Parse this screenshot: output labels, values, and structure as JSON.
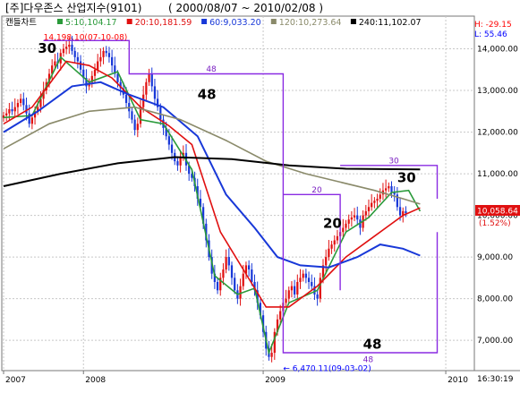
{
  "header": {
    "title": "[주]다우존스 산업지수(9101)",
    "period": "( 2000/08/07 ~ 2010/02/08 )",
    "chart_label": "캔들차트"
  },
  "colors": {
    "ma5": "#2a9a3a",
    "ma20": "#e01010",
    "ma60": "#1838d8",
    "ma120": "#8a8a6a",
    "ma240": "#000000",
    "candle_up": "#e01010",
    "candle_down": "#1838d8",
    "annotation": "#8a2be2",
    "high": "#ff0000",
    "low": "#0000ff",
    "price_box": "#e01010"
  },
  "legend": [
    {
      "label": "5:10,104.17",
      "color": "#2a9a3a"
    },
    {
      "label": "20:10,181.59",
      "color": "#e01010"
    },
    {
      "label": "60:9,033.20",
      "color": "#1838d8"
    },
    {
      "label": "120:10,273.64",
      "color": "#8a8a6a"
    },
    {
      "label": "240:11,102.07",
      "color": "#000000"
    }
  ],
  "minmax": {
    "high": "H: -29.15",
    "low": "L: 55.46"
  },
  "price_box": {
    "value": "10,058.64",
    "change": "(1.52%)"
  },
  "time_label": "16:30:19",
  "chart_data": {
    "type": "candlestick",
    "ylim": [
      6400,
      14700
    ],
    "yticks": [
      {
        "value": 7000,
        "label": "7,000.00"
      },
      {
        "value": 8000,
        "label": "8,000.00"
      },
      {
        "value": 9000,
        "label": "9,000.00"
      },
      {
        "value": 10000,
        "label": "10,000.00"
      },
      {
        "value": 11000,
        "label": "11,000.00"
      },
      {
        "value": 12000,
        "label": "12,000.00"
      },
      {
        "value": 13000,
        "label": "13,000.00"
      },
      {
        "value": 14000,
        "label": "14,000.00"
      }
    ],
    "xlim": [
      0,
      160
    ],
    "xticks": [
      {
        "index": 0,
        "label": "2007"
      },
      {
        "index": 28,
        "label": "2008"
      },
      {
        "index": 91,
        "label": "2009"
      },
      {
        "index": 155,
        "label": "2010"
      }
    ],
    "candles": {
      "up_color_key": "candle_up",
      "down_color_key": "candle_down",
      "note": "Weekly candles; closes below approximate the screenshot",
      "closes": [
        12400,
        12450,
        12550,
        12500,
        12600,
        12700,
        12800,
        12650,
        12450,
        12200,
        12350,
        12500,
        12600,
        12800,
        13000,
        13200,
        13400,
        13600,
        13700,
        13650,
        13900,
        14000,
        14050,
        14100,
        13950,
        13800,
        13700,
        13500,
        13300,
        13100,
        13200,
        13350,
        13500,
        13700,
        13800,
        13950,
        13900,
        13800,
        13600,
        13400,
        13200,
        13050,
        12900,
        12700,
        12500,
        12300,
        12050,
        12200,
        12600,
        12900,
        13200,
        13400,
        13100,
        12800,
        12600,
        12300,
        12100,
        11900,
        11700,
        11500,
        11300,
        11200,
        11400,
        11500,
        11200,
        11000,
        10900,
        10700,
        10400,
        10200,
        9800,
        9400,
        9000,
        8600,
        8400,
        8200,
        8500,
        8700,
        9000,
        8800,
        8500,
        8200,
        8000,
        8300,
        8600,
        8800,
        8700,
        8400,
        8200,
        7900,
        7600,
        7200,
        6800,
        6600,
        6700,
        7200,
        7500,
        7700,
        7900,
        8000,
        8200,
        8300,
        8100,
        8400,
        8500,
        8600,
        8500,
        8400,
        8300,
        8100,
        8000,
        8500,
        8800,
        9000,
        9200,
        9300,
        9400,
        9500,
        9600,
        9700,
        9800,
        9900,
        9950,
        10000,
        9900,
        9700,
        10000,
        10100,
        10200,
        10300,
        10350,
        10400,
        10500,
        10600,
        10650,
        10700,
        10550,
        10500,
        10200,
        10000,
        10100,
        10050
      ]
    },
    "series": [
      {
        "color_key": "ma5",
        "values": [
          {
            "x": 0,
            "y": 12350
          },
          {
            "x": 10,
            "y": 12400
          },
          {
            "x": 20,
            "y": 13800
          },
          {
            "x": 30,
            "y": 13200
          },
          {
            "x": 40,
            "y": 13450
          },
          {
            "x": 48,
            "y": 12300
          },
          {
            "x": 56,
            "y": 12200
          },
          {
            "x": 66,
            "y": 11100
          },
          {
            "x": 74,
            "y": 8550
          },
          {
            "x": 82,
            "y": 8100
          },
          {
            "x": 88,
            "y": 8250
          },
          {
            "x": 93,
            "y": 6700
          },
          {
            "x": 100,
            "y": 7900
          },
          {
            "x": 110,
            "y": 8200
          },
          {
            "x": 120,
            "y": 9600
          },
          {
            "x": 128,
            "y": 9950
          },
          {
            "x": 136,
            "y": 10550
          },
          {
            "x": 142,
            "y": 10600
          },
          {
            "x": 146,
            "y": 10100
          }
        ]
      },
      {
        "color_key": "ma20",
        "values": [
          {
            "x": 0,
            "y": 12200
          },
          {
            "x": 10,
            "y": 12600
          },
          {
            "x": 22,
            "y": 13700
          },
          {
            "x": 30,
            "y": 13600
          },
          {
            "x": 38,
            "y": 13300
          },
          {
            "x": 48,
            "y": 12600
          },
          {
            "x": 58,
            "y": 12150
          },
          {
            "x": 66,
            "y": 11700
          },
          {
            "x": 76,
            "y": 9600
          },
          {
            "x": 84,
            "y": 8700
          },
          {
            "x": 92,
            "y": 7800
          },
          {
            "x": 100,
            "y": 7800
          },
          {
            "x": 110,
            "y": 8300
          },
          {
            "x": 120,
            "y": 9000
          },
          {
            "x": 130,
            "y": 9500
          },
          {
            "x": 140,
            "y": 10000
          },
          {
            "x": 146,
            "y": 10181
          }
        ]
      },
      {
        "color_key": "ma60",
        "values": [
          {
            "x": 0,
            "y": 12000
          },
          {
            "x": 12,
            "y": 12500
          },
          {
            "x": 24,
            "y": 13100
          },
          {
            "x": 34,
            "y": 13200
          },
          {
            "x": 44,
            "y": 12900
          },
          {
            "x": 56,
            "y": 12600
          },
          {
            "x": 68,
            "y": 11900
          },
          {
            "x": 78,
            "y": 10500
          },
          {
            "x": 88,
            "y": 9700
          },
          {
            "x": 96,
            "y": 9000
          },
          {
            "x": 104,
            "y": 8800
          },
          {
            "x": 114,
            "y": 8750
          },
          {
            "x": 124,
            "y": 9000
          },
          {
            "x": 132,
            "y": 9300
          },
          {
            "x": 140,
            "y": 9200
          },
          {
            "x": 146,
            "y": 9033
          }
        ]
      },
      {
        "color_key": "ma120",
        "values": [
          {
            "x": 0,
            "y": 11600
          },
          {
            "x": 16,
            "y": 12200
          },
          {
            "x": 30,
            "y": 12500
          },
          {
            "x": 46,
            "y": 12600
          },
          {
            "x": 62,
            "y": 12300
          },
          {
            "x": 78,
            "y": 11800
          },
          {
            "x": 92,
            "y": 11300
          },
          {
            "x": 106,
            "y": 11000
          },
          {
            "x": 118,
            "y": 10800
          },
          {
            "x": 130,
            "y": 10600
          },
          {
            "x": 140,
            "y": 10400
          },
          {
            "x": 146,
            "y": 10273
          }
        ]
      },
      {
        "color_key": "ma240",
        "values": [
          {
            "x": 0,
            "y": 10700
          },
          {
            "x": 20,
            "y": 11000
          },
          {
            "x": 40,
            "y": 11250
          },
          {
            "x": 60,
            "y": 11400
          },
          {
            "x": 80,
            "y": 11350
          },
          {
            "x": 100,
            "y": 11200
          },
          {
            "x": 120,
            "y": 11120
          },
          {
            "x": 146,
            "y": 11102
          }
        ]
      }
    ],
    "annotations": [
      {
        "text": "30",
        "x": 12,
        "y": 13900
      },
      {
        "text": "48",
        "x": 68,
        "y": 12800
      },
      {
        "text": "30",
        "x": 138,
        "y": 10800
      },
      {
        "text": "20",
        "x": 112,
        "y": 9700
      },
      {
        "text": "48",
        "x": 126,
        "y": 6800
      }
    ],
    "annotation_lines": [
      {
        "points": [
          {
            "x": 14,
            "y": 14200
          },
          {
            "x": 44,
            "y": 14200
          },
          {
            "x": 44,
            "y": 13400
          },
          {
            "x": 98,
            "y": 13400
          },
          {
            "x": 98,
            "y": 6700
          },
          {
            "x": 152,
            "y": 6700
          },
          {
            "x": 152,
            "y": 9600
          }
        ]
      },
      {
        "points": [
          {
            "x": 98,
            "y": 10500
          },
          {
            "x": 118,
            "y": 10500
          },
          {
            "x": 118,
            "y": 8200
          }
        ]
      },
      {
        "points": [
          {
            "x": 118,
            "y": 11200
          },
          {
            "x": 152,
            "y": 11200
          },
          {
            "x": 152,
            "y": 10400
          }
        ]
      }
    ],
    "box_labels": [
      {
        "text": "48",
        "x": 71,
        "y": 13450
      },
      {
        "text": "20",
        "x": 108,
        "y": 10550
      },
      {
        "text": "30",
        "x": 135,
        "y": 11250
      },
      {
        "text": "48",
        "x": 126,
        "y": 6480
      }
    ],
    "extremes": [
      {
        "text": "14,198.10(07-10-08)",
        "x": 14,
        "y": 14198
      },
      {
        "text": "← 6,470.11(09-03-02)",
        "x": 98,
        "y": 6470
      }
    ]
  }
}
